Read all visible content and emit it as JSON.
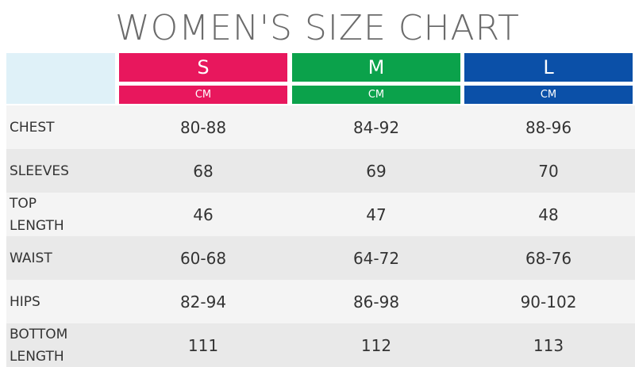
{
  "title": "WOMEN'S SIZE CHART",
  "table": {
    "columns": [
      {
        "size": "S",
        "unit": "CM",
        "color": "#e8175d"
      },
      {
        "size": "M",
        "unit": "CM",
        "color": "#0ba24b"
      },
      {
        "size": "L",
        "unit": "CM",
        "color": "#0b50a8"
      }
    ],
    "rows": [
      {
        "label": "CHEST",
        "values": [
          "80-88",
          "84-92",
          "88-96"
        ]
      },
      {
        "label": "SLEEVES",
        "values": [
          "68",
          "69",
          "70"
        ]
      },
      {
        "label": "TOP LENGTH",
        "values": [
          "46",
          "47",
          "48"
        ]
      },
      {
        "label": "WAIST",
        "values": [
          "60-68",
          "64-72",
          "68-76"
        ]
      },
      {
        "label": "HIPS",
        "values": [
          "82-94",
          "86-98",
          "90-102"
        ]
      },
      {
        "label": "BOTTOM LENGTH",
        "values": [
          "111",
          "112",
          "113"
        ]
      }
    ]
  }
}
